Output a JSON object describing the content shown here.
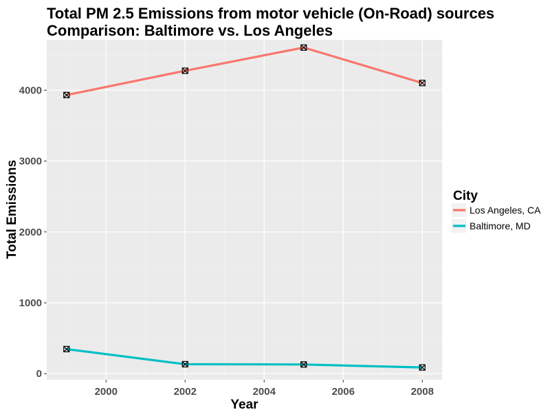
{
  "chart_data": {
    "type": "line",
    "title": "Total PM 2.5 Emissions from motor vehicle (On-Road) sources",
    "subtitle": "Comparison: Baltimore vs. Los Angeles",
    "xlabel": "Year",
    "ylabel": "Total Emissions",
    "x": [
      1999,
      2002,
      2005,
      2008
    ],
    "xlim": [
      1998.5,
      2008.5
    ],
    "ylim": [
      -85,
      4710
    ],
    "xticks": [
      2000,
      2002,
      2004,
      2006,
      2008
    ],
    "yticks": [
      0,
      1000,
      2000,
      3000,
      4000
    ],
    "grid": true,
    "legend": {
      "title": "City",
      "position": "right"
    },
    "series": [
      {
        "name": "Los Angeles, CA",
        "color": "#F8766D",
        "values": [
          3931,
          4274,
          4601,
          4101
        ]
      },
      {
        "name": "Baltimore, MD",
        "color": "#00BFC4",
        "values": [
          347,
          134,
          130,
          88
        ]
      }
    ],
    "point_marker": "square-with-x"
  }
}
